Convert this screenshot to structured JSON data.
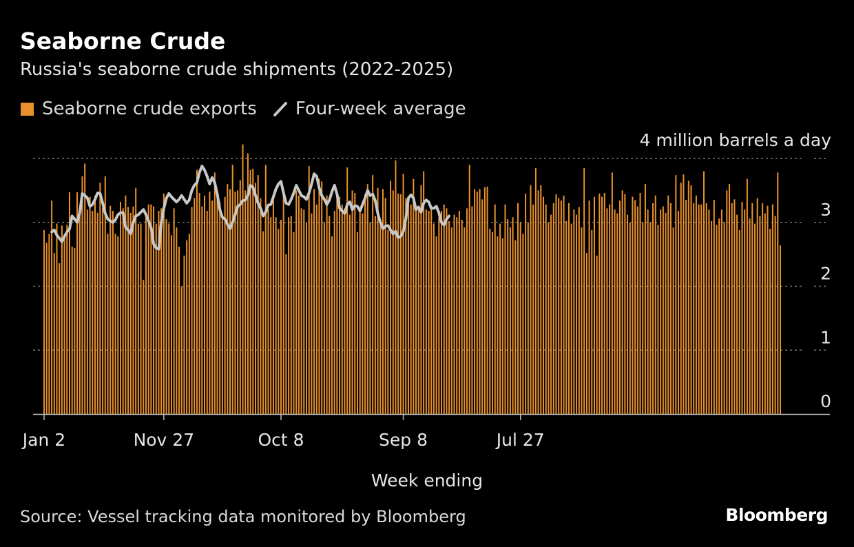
{
  "header": {
    "title": "Seaborne Crude",
    "subtitle": "Russia's seaborne crude shipments (2022-2025)"
  },
  "legend": {
    "bars_label": "Seaborne crude exports",
    "line_label": "Four-week average"
  },
  "footer": {
    "source": "Source: Vessel tracking data monitored by Bloomberg",
    "brand": "Bloomberg"
  },
  "colors": {
    "background": "#000000",
    "bar": "#e8902c",
    "line": "#c8c8c8",
    "grid": "#777777",
    "text": "#e6e6e6"
  },
  "chart_data": {
    "type": "bar",
    "title": "Seaborne Crude",
    "subtitle": "Russia's seaborne crude shipments (2022-2025)",
    "xlabel": "Week ending",
    "ylabel": "",
    "y_unit_label": "4 million barrels a day",
    "ylim": [
      0,
      4
    ],
    "yticks": [
      0,
      1,
      2,
      3,
      4
    ],
    "ytick_labels": [
      "0",
      "1",
      "2",
      "3",
      ""
    ],
    "x_ticks": [
      {
        "index": 0,
        "label": "Jan 2"
      },
      {
        "index": 47,
        "label": "Nov 27"
      },
      {
        "index": 93,
        "label": "Oct 8"
      },
      {
        "index": 141,
        "label": "Sep 8"
      },
      {
        "index": 187,
        "label": "Jul 27"
      }
    ],
    "legend_position": "top-left",
    "series": [
      {
        "name": "Seaborne crude exports",
        "type": "bar",
        "values": [
          2.88,
          2.68,
          2.82,
          3.34,
          2.52,
          2.98,
          2.36,
          2.95,
          2.82,
          2.96,
          3.47,
          2.62,
          2.6,
          3.47,
          3.23,
          3.72,
          3.92,
          3.2,
          3.4,
          3.18,
          3.42,
          3.15,
          3.62,
          3.23,
          3.72,
          2.82,
          3.26,
          3.18,
          2.82,
          2.78,
          3.32,
          3.22,
          3.42,
          3.24,
          3.15,
          3.25,
          3.54,
          2.98,
          2.98,
          2.1,
          3.14,
          3.28,
          3.28,
          3.25,
          2.98,
          3.18,
          3.22,
          3.45,
          3.05,
          2.98,
          2.8,
          3.22,
          2.92,
          2.62,
          2.0,
          2.48,
          2.72,
          2.82,
          3.24,
          3.38,
          3.82,
          3.46,
          3.25,
          3.42,
          3.18,
          3.48,
          3.34,
          3.78,
          3.42,
          3.32,
          3.12,
          3.4,
          3.6,
          3.52,
          3.9,
          3.48,
          3.5,
          3.66,
          4.22,
          3.5,
          4.08,
          3.82,
          3.84,
          3.62,
          3.74,
          3.38,
          2.86,
          3.9,
          3.2,
          3.08,
          3.4,
          3.08,
          2.9,
          3.04,
          3.44,
          2.5,
          3.08,
          3.1,
          2.85,
          3.5,
          3.42,
          3.22,
          3.2,
          3.0,
          3.88,
          3.14,
          3.52,
          3.28,
          3.68,
          3.64,
          3.0,
          3.42,
          3.1,
          2.78,
          3.18,
          3.42,
          3.4,
          3.28,
          3.22,
          3.86,
          3.12,
          3.5,
          3.46,
          2.85,
          3.22,
          3.14,
          3.44,
          3.6,
          3.0,
          3.74,
          3.1,
          3.54,
          3.0,
          3.52,
          3.38,
          2.88,
          3.65,
          3.5,
          3.97,
          3.45,
          3.44,
          3.76,
          3.38,
          3.28,
          3.28,
          3.68,
          3.22,
          3.2,
          3.58,
          3.8,
          3.2,
          3.18,
          3.25,
          2.98,
          2.78,
          3.08,
          3.18,
          3.28,
          3.22,
          3.02,
          2.92,
          3.12,
          3.08,
          3.18,
          3.04,
          2.92,
          3.22,
          3.9,
          3.25,
          3.52,
          3.48,
          3.52,
          3.36,
          3.55,
          3.56,
          2.9,
          2.85,
          3.28,
          2.78,
          2.98,
          2.75,
          3.28,
          3.05,
          2.92,
          3.08,
          2.72,
          3.3,
          3.0,
          2.82,
          3.45,
          3.0,
          3.58,
          3.28,
          3.85,
          3.5,
          3.58,
          3.4,
          3.28,
          3.0,
          3.12,
          3.3,
          3.44,
          3.38,
          3.34,
          3.42,
          3.02,
          3.3,
          2.98,
          3.2,
          3.12,
          3.24,
          2.92,
          3.85,
          2.52,
          3.34,
          2.88,
          3.4,
          2.48,
          3.45,
          3.4,
          3.46,
          3.22,
          3.28,
          3.78,
          3.2,
          3.14,
          3.34,
          3.5,
          3.44,
          3.12,
          3.0,
          3.4,
          3.35,
          3.25,
          3.46,
          3.0,
          3.6,
          3.2,
          3.0,
          3.3,
          3.42,
          2.96,
          3.2,
          3.25,
          3.15,
          3.42,
          3.3,
          2.92,
          3.74,
          3.18,
          3.62,
          3.75,
          3.35,
          3.65,
          3.58,
          3.3,
          3.42,
          3.28,
          3.28,
          3.8,
          3.3,
          3.2,
          3.02,
          3.35,
          2.96,
          3.06,
          3.2,
          3.0,
          3.5,
          3.6,
          3.3,
          3.36,
          3.12,
          2.88,
          3.32,
          3.2,
          3.68,
          3.06,
          3.3,
          2.98,
          3.38,
          3.1,
          3.3,
          3.14,
          3.26,
          2.9,
          3.28,
          3.1,
          3.78,
          2.64
        ]
      },
      {
        "name": "Four-week average",
        "type": "line",
        "values": [
          2.85,
          2.88,
          2.8,
          2.75,
          2.7,
          2.78,
          2.85,
          2.9,
          3.1,
          3.05,
          3.0,
          3.15,
          3.45,
          3.42,
          3.38,
          3.25,
          3.28,
          3.36,
          3.46,
          3.45,
          3.3,
          3.14,
          3.05,
          3.02,
          3.0,
          3.04,
          3.12,
          3.15,
          3.15,
          2.92,
          2.88,
          2.82,
          3.0,
          3.1,
          3.12,
          3.16,
          3.2,
          3.12,
          3.02,
          2.92,
          2.66,
          2.6,
          2.58,
          3.0,
          3.22,
          3.38,
          3.45,
          3.4,
          3.36,
          3.32,
          3.36,
          3.42,
          3.36,
          3.3,
          3.35,
          3.5,
          3.58,
          3.62,
          3.78,
          3.88,
          3.82,
          3.72,
          3.6,
          3.7,
          3.62,
          3.44,
          3.2,
          3.08,
          3.05,
          2.97,
          2.9,
          3.0,
          3.12,
          3.25,
          3.28,
          3.34,
          3.35,
          3.42,
          3.58,
          3.55,
          3.42,
          3.3,
          3.22,
          3.1,
          3.16,
          3.27,
          3.28,
          3.4,
          3.52,
          3.6,
          3.64,
          3.46,
          3.3,
          3.28,
          3.36,
          3.46,
          3.58,
          3.5,
          3.42,
          3.4,
          3.36,
          3.46,
          3.6,
          3.76,
          3.72,
          3.54,
          3.42,
          3.36,
          3.28,
          3.35,
          3.48,
          3.58,
          3.44,
          3.22,
          3.18,
          3.14,
          3.28,
          3.32,
          3.2,
          3.26,
          3.25,
          3.18,
          3.28,
          3.38,
          3.5,
          3.42,
          3.44,
          3.34,
          3.14,
          3.0,
          2.9,
          2.94,
          2.95,
          2.88,
          2.82,
          2.86,
          2.76,
          2.78,
          2.86,
          3.06,
          3.38,
          3.43,
          3.38,
          3.2,
          3.24,
          3.16,
          3.3,
          3.35,
          3.32,
          3.22,
          3.22,
          3.25,
          3.15,
          3.0,
          2.96,
          3.05,
          3.1
        ]
      }
    ]
  }
}
